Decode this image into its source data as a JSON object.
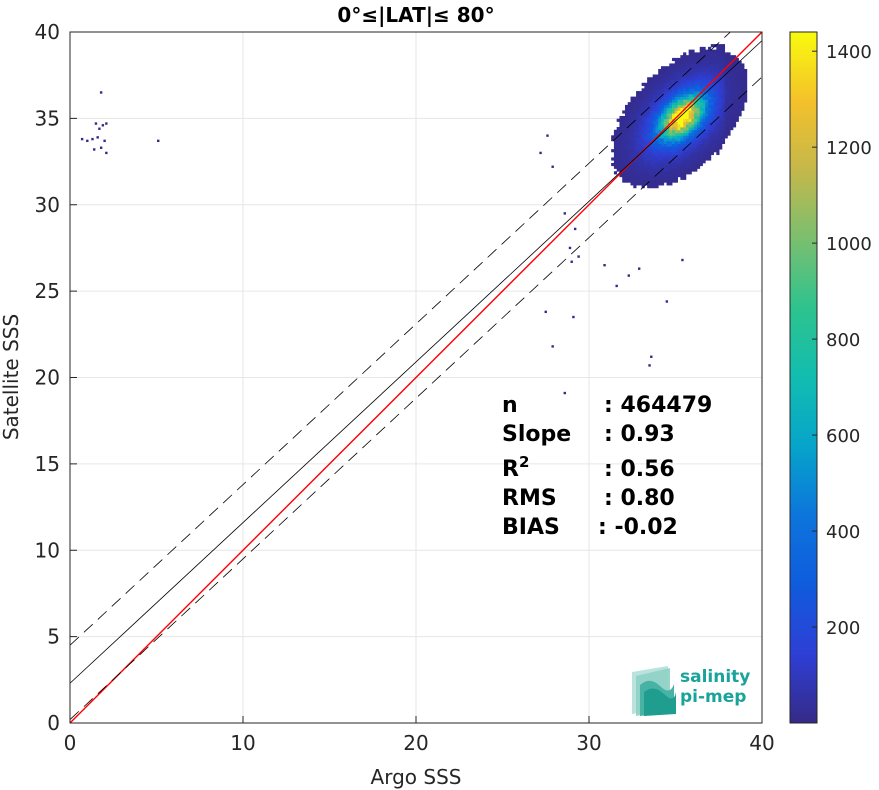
{
  "chart_data": {
    "type": "heatmap",
    "title": "0°≤|LAT|≤ 80°",
    "xlabel": "Argo SSS",
    "ylabel": "Satellite SSS",
    "xlim": [
      0,
      40
    ],
    "ylim": [
      0,
      40
    ],
    "xticks": [
      "0",
      "10",
      "20",
      "30",
      "40"
    ],
    "yticks": [
      "0",
      "5",
      "10",
      "15",
      "20",
      "25",
      "30",
      "35",
      "40"
    ],
    "grid": true,
    "colorbar": {
      "range": [
        0,
        1440
      ],
      "ticks": [
        "200",
        "400",
        "600",
        "800",
        "1000",
        "1200",
        "1400"
      ],
      "colormap": "parula"
    },
    "density_peak": {
      "x": 35.3,
      "y": 35.0,
      "count": 1440
    },
    "lines": [
      {
        "name": "identity",
        "color": "#ff0000",
        "slope": 1.0,
        "intercept": 0.0
      },
      {
        "name": "fit",
        "color": "#000000",
        "slope": 0.93,
        "intercept": 2.3
      },
      {
        "name": "fit-plus",
        "color": "#000000",
        "dashed": true,
        "slope": 0.93,
        "intercept": 4.5
      },
      {
        "name": "fit-minus",
        "color": "#000000",
        "dashed": true,
        "slope": 0.93,
        "intercept": 0.2
      }
    ],
    "stats": [
      {
        "label": "n",
        "value": ": 464479"
      },
      {
        "label": "Slope",
        "value": ": 0.93"
      },
      {
        "label": "R",
        "sup": "2",
        "value": ": 0.56"
      },
      {
        "label": "RMS",
        "value": ": 0.80"
      },
      {
        "label": "BIAS",
        "value": ": -0.02"
      }
    ],
    "outliers": [
      [
        1.8,
        36.5
      ],
      [
        1.5,
        34.7
      ],
      [
        1.9,
        34.6
      ],
      [
        2.1,
        34.7
      ],
      [
        1.7,
        34.4
      ],
      [
        1.3,
        33.8
      ],
      [
        0.7,
        33.8
      ],
      [
        1.0,
        33.7
      ],
      [
        1.6,
        33.9
      ],
      [
        2.0,
        33.7
      ],
      [
        1.4,
        33.2
      ],
      [
        1.8,
        33.3
      ],
      [
        2.1,
        33.0
      ],
      [
        5.1,
        33.7
      ],
      [
        27.2,
        33.0
      ],
      [
        27.6,
        34.0
      ],
      [
        27.9,
        32.2
      ],
      [
        28.6,
        29.5
      ],
      [
        29.2,
        28.6
      ],
      [
        28.9,
        27.5
      ],
      [
        29.4,
        27.0
      ],
      [
        29.0,
        26.7
      ],
      [
        27.5,
        23.8
      ],
      [
        29.1,
        23.5
      ],
      [
        27.9,
        21.8
      ],
      [
        28.6,
        19.1
      ],
      [
        30.9,
        26.5
      ],
      [
        31.6,
        25.3
      ],
      [
        32.3,
        25.9
      ],
      [
        34.5,
        24.4
      ],
      [
        33.6,
        21.2
      ],
      [
        33.5,
        20.7
      ],
      [
        32.9,
        26.3
      ],
      [
        35.4,
        26.8
      ]
    ]
  },
  "logo": {
    "line1": "salinity",
    "line2": "pi-mep"
  }
}
